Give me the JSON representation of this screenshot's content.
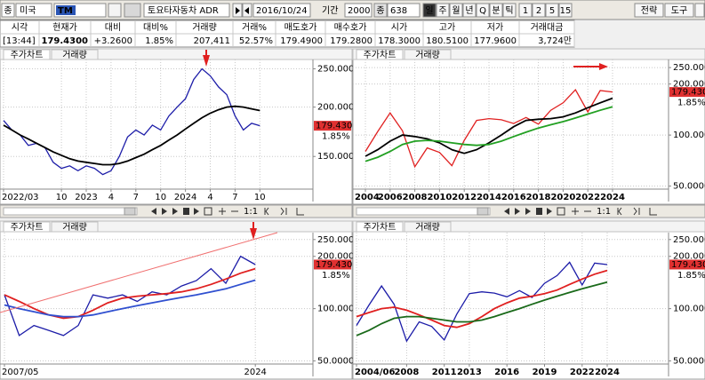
{
  "toolbar": {
    "market_icon": "종",
    "market": "미국",
    "symbol": "TM",
    "name": "토요타자동차 ADR",
    "date": "2016/10/24",
    "period_label": "기간",
    "period": "2000",
    "count_label": "종",
    "count": "638",
    "intervals": [
      "일",
      "주",
      "월",
      "년",
      "Q",
      "분",
      "틱"
    ],
    "minutes": [
      "1",
      "2",
      "5",
      "15"
    ],
    "right_buttons": [
      "전략",
      "도구"
    ]
  },
  "quote": {
    "headers": [
      "시각",
      "현재가",
      "대비",
      "대비%",
      "거래량",
      "거래%",
      "매도호가",
      "매수호가",
      "시가",
      "고가",
      "저가",
      "거래대금"
    ],
    "values": [
      "[13:44]",
      "179.4300",
      "+3.2600",
      "1.85%",
      "207,411",
      "52.57%",
      "179.4900",
      "179.2800",
      "178.3000",
      "180.5100",
      "177.9600",
      "3,724만"
    ]
  },
  "panel_tabs": [
    "주가차트",
    "거래량"
  ],
  "zoom_label": "1:1",
  "chart_data": [
    {
      "type": "line",
      "log": true,
      "grid": true,
      "ylim": [
        124,
        264
      ],
      "yticks": [
        {
          "value": 250,
          "label": "250.0000"
        },
        {
          "value": 200,
          "label": "200.0000"
        },
        {
          "value": 150,
          "label": "150.0000"
        }
      ],
      "last_price": {
        "value": 179.43,
        "label": "179.4300"
      },
      "change_label": "1.85%",
      "categories": [
        "2022/03",
        null,
        null,
        null,
        null,
        null,
        null,
        "10",
        null,
        null,
        "2023",
        null,
        null,
        "4",
        null,
        null,
        "7",
        null,
        null,
        "10",
        null,
        null,
        "2024",
        null,
        null,
        "4",
        null,
        null,
        "7",
        null,
        null,
        "10"
      ],
      "series": [
        {
          "color": "#1c1ca8",
          "values": [
            185,
            175,
            170,
            160,
            162,
            158,
            145,
            140,
            142,
            138,
            142,
            140,
            135,
            138,
            150,
            168,
            175,
            170,
            180,
            175,
            190,
            200,
            210,
            235,
            250,
            240,
            225,
            215,
            190,
            175,
            182,
            179.43
          ]
        },
        {
          "color": "#000000",
          "values": [
            180,
            175,
            170,
            166,
            162,
            158,
            154,
            151,
            148,
            146,
            145,
            144,
            143,
            143,
            144,
            146,
            149,
            152,
            156,
            160,
            165,
            170,
            176,
            182,
            188,
            193,
            197,
            200,
            201,
            200,
            198,
            196
          ]
        }
      ]
    },
    {
      "type": "line",
      "log": true,
      "grid": true,
      "ylim": [
        48,
        279
      ],
      "yticks": [
        {
          "value": 250,
          "label": "250.0000"
        },
        {
          "value": 200,
          "label": "200.0000"
        },
        {
          "value": 100,
          "label": "100.0000"
        },
        {
          "value": 50,
          "label": "50.0000"
        }
      ],
      "last_price": {
        "value": 179.43,
        "label": "179.4300"
      },
      "change_label": "1.85%",
      "categories": [
        "2004",
        null,
        "2006",
        null,
        "2008",
        null,
        "2010",
        null,
        "2012",
        null,
        "2014",
        null,
        "2016",
        null,
        "2018",
        null,
        "2020",
        null,
        "2022",
        null,
        "2024"
      ],
      "series": [
        {
          "color": "#e02020",
          "values": [
            80,
            105,
            135,
            106,
            65,
            84,
            79,
            66,
            93,
            122,
            125,
            123,
            117,
            127,
            116,
            140,
            155,
            185,
            137,
            183,
            179.43
          ]
        },
        {
          "color": "#000000",
          "values": [
            75,
            82,
            92,
            100,
            98,
            95,
            90,
            82,
            78,
            82,
            90,
            100,
            112,
            122,
            124,
            125,
            128,
            135,
            145,
            155,
            165
          ]
        },
        {
          "color": "#22a022",
          "values": [
            70,
            74,
            80,
            88,
            92,
            93,
            92,
            90,
            88,
            87,
            88,
            92,
            98,
            104,
            110,
            115,
            120,
            126,
            133,
            140,
            147
          ]
        }
      ]
    },
    {
      "type": "line",
      "log": true,
      "grid": true,
      "ylim": [
        48,
        274
      ],
      "yticks": [
        {
          "value": 250,
          "label": "250.0000"
        },
        {
          "value": 200,
          "label": "200.0000"
        },
        {
          "value": 100,
          "label": "100.0000"
        },
        {
          "value": 50,
          "label": "50.0000"
        }
      ],
      "last_price": {
        "value": 179.43,
        "label": "179.4300"
      },
      "change_label": "1.85%",
      "categories": [
        "2007/05",
        null,
        null,
        null,
        null,
        null,
        null,
        null,
        null,
        null,
        null,
        null,
        null,
        null,
        null,
        null,
        null,
        "2024"
      ],
      "series": [
        {
          "color": "#1c1ca8",
          "values": [
            120,
            70,
            80,
            75,
            70,
            80,
            120,
            115,
            120,
            110,
            125,
            120,
            135,
            145,
            170,
            140,
            200,
            179.43
          ]
        },
        {
          "color": "#e02020",
          "values": [
            120,
            110,
            100,
            92,
            88,
            90,
            98,
            108,
            115,
            118,
            120,
            122,
            125,
            130,
            138,
            148,
            160,
            170
          ]
        },
        {
          "color": "#3050d0",
          "values": [
            105,
            100,
            96,
            92,
            90,
            90,
            92,
            96,
            100,
            104,
            108,
            112,
            116,
            120,
            125,
            130,
            138,
            146
          ]
        }
      ]
    },
    {
      "type": "line",
      "log": true,
      "grid": true,
      "ylim": [
        48,
        274
      ],
      "yticks": [
        {
          "value": 250,
          "label": "250.0000"
        },
        {
          "value": 200,
          "label": "200.0000"
        },
        {
          "value": 100,
          "label": "100.0000"
        },
        {
          "value": 50,
          "label": "50.0000"
        }
      ],
      "last_price": {
        "value": 179.43,
        "label": "179.4300"
      },
      "change_label": "1.85%",
      "categories": [
        "2004/06",
        null,
        null,
        null,
        "2008",
        null,
        null,
        "2011",
        null,
        "2013",
        null,
        null,
        "2016",
        null,
        null,
        "2019",
        null,
        null,
        "2022",
        null,
        "2024"
      ],
      "series": [
        {
          "color": "#1c1ca8",
          "values": [
            80,
            105,
            135,
            106,
            65,
            84,
            79,
            66,
            93,
            122,
            125,
            123,
            117,
            127,
            116,
            140,
            155,
            185,
            137,
            183,
            179.43
          ]
        },
        {
          "color": "#e02020",
          "values": [
            90,
            95,
            100,
            102,
            98,
            92,
            86,
            80,
            78,
            82,
            90,
            100,
            108,
            115,
            118,
            122,
            128,
            138,
            148,
            158,
            166
          ]
        },
        {
          "color": "#1a6a1a",
          "values": [
            70,
            75,
            82,
            88,
            90,
            90,
            88,
            86,
            84,
            84,
            86,
            90,
            95,
            100,
            106,
            112,
            118,
            124,
            130,
            136,
            142
          ]
        }
      ]
    }
  ]
}
